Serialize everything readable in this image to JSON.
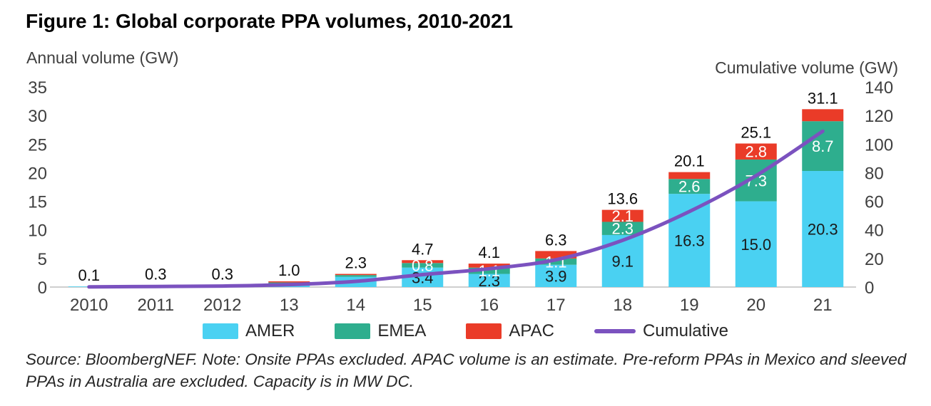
{
  "chart_data": {
    "type": "stacked-bar-line",
    "title": "Figure 1: Global corporate PPA volumes, 2010-2021",
    "left_axis": {
      "title": "Annual volume (GW)",
      "min": 0,
      "max": 35,
      "ticks": [
        0,
        5,
        10,
        15,
        20,
        25,
        30,
        35
      ]
    },
    "right_axis": {
      "title": "Cumulative volume (GW)",
      "min": 0,
      "max": 140,
      "ticks": [
        0,
        20,
        40,
        60,
        80,
        100,
        120,
        140
      ]
    },
    "categories": [
      "2010",
      "2011",
      "2012",
      "13",
      "14",
      "15",
      "16",
      "17",
      "18",
      "19",
      "20",
      "21"
    ],
    "series": [
      {
        "name": "AMER",
        "color": "#4ad1f2",
        "label_color": "#1a1a1a",
        "values": [
          0.1,
          0.3,
          0.3,
          0.6,
          1.8,
          3.4,
          2.3,
          3.9,
          9.1,
          16.3,
          15.0,
          20.3
        ],
        "labels": [
          "",
          "",
          "",
          "",
          "",
          "3.4",
          "2.3",
          "3.9",
          "9.1",
          "16.3",
          "15.0",
          "20.3"
        ]
      },
      {
        "name": "EMEA",
        "color": "#2eae8e",
        "label_color": "#ffffff",
        "values": [
          0,
          0,
          0,
          0.2,
          0.3,
          0.8,
          1.1,
          1.1,
          2.3,
          2.6,
          7.3,
          8.7
        ],
        "labels": [
          "",
          "",
          "",
          "",
          "",
          "0.8",
          "1.1",
          "1.1",
          "2.3",
          "2.6",
          "7.3",
          "8.7"
        ]
      },
      {
        "name": "APAC",
        "color": "#ea3b28",
        "label_color": "#ffffff",
        "values": [
          0,
          0,
          0,
          0.2,
          0.2,
          0.5,
          0.7,
          1.3,
          2.1,
          1.2,
          2.8,
          2.1
        ],
        "labels": [
          "",
          "",
          "",
          "",
          "",
          "",
          "",
          "",
          "2.1",
          "",
          "2.8",
          ""
        ]
      }
    ],
    "totals_display": [
      "0.1",
      "0.3",
      "0.3",
      "1.0",
      "2.3",
      "4.7",
      "4.1",
      "6.3",
      "13.6",
      "20.1",
      "25.1",
      "31.1"
    ],
    "line": {
      "name": "Cumulative",
      "color": "#7b52bf",
      "values": [
        0.1,
        0.4,
        0.7,
        1.7,
        4.0,
        8.7,
        12.8,
        19.1,
        32.7,
        52.8,
        77.9,
        109.0
      ]
    },
    "source_note": "Source: BloombergNEF. Note: Onsite PPAs excluded. APAC volume is an estimate. Pre-reform PPAs in Mexico and sleeved PPAs in Australia are excluded. Capacity is in MW DC."
  }
}
